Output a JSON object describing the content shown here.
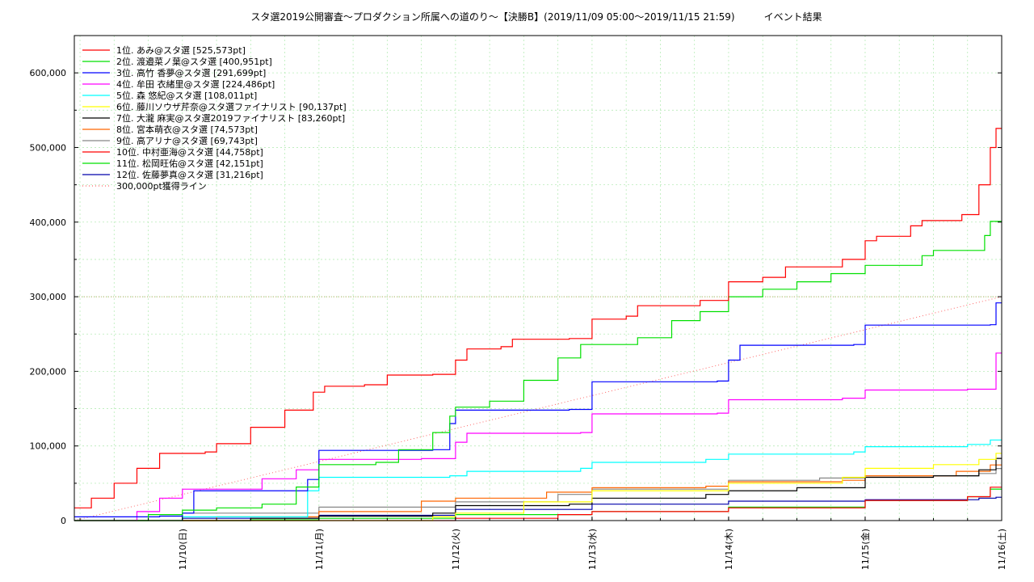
{
  "chart_data": {
    "type": "line",
    "title": "スタ選2019公開審査～プロダクション所属への道のり～【決勝B】(2019/11/09 05:00～2019/11/15 21:59)　　　イベント結果",
    "xlabel": "",
    "ylabel": "",
    "ylim": [
      0,
      650000
    ],
    "xlim": [
      "2019/11/09 05:00",
      "2019/11/16 00:00"
    ],
    "grid": true,
    "legend_position": "top-left",
    "y_ticks": [
      {
        "value": 0,
        "label": "0"
      },
      {
        "value": 100000,
        "label": "100,000"
      },
      {
        "value": 200000,
        "label": "200,000"
      },
      {
        "value": 300000,
        "label": "300,000"
      },
      {
        "value": 400000,
        "label": "400,000"
      },
      {
        "value": 500000,
        "label": "500,000"
      },
      {
        "value": 600000,
        "label": "600,000"
      }
    ],
    "x_ticks": [
      {
        "value": "2019-11-10 00:00",
        "label": "11/10(日)"
      },
      {
        "value": "2019-11-11 00:00",
        "label": "11/11(月)"
      },
      {
        "value": "2019-11-12 00:00",
        "label": "11/12(火)"
      },
      {
        "value": "2019-11-13 00:00",
        "label": "11/13(水)"
      },
      {
        "value": "2019-11-14 00:00",
        "label": "11/14(木)"
      },
      {
        "value": "2019-11-15 00:00",
        "label": "11/15(金)"
      },
      {
        "value": "2019-11-16 00:00",
        "label": "11/16(土)"
      }
    ],
    "series": [
      {
        "name": "1位. あみ@スタ選 [525,573pt]",
        "color": "#ff0000",
        "style": "step",
        "points": [
          [
            "2019-11-09 05:00",
            17000
          ],
          [
            "2019-11-09 08:00",
            30000
          ],
          [
            "2019-11-09 12:00",
            50000
          ],
          [
            "2019-11-09 16:00",
            70000
          ],
          [
            "2019-11-09 20:00",
            90000
          ],
          [
            "2019-11-10 04:00",
            92000
          ],
          [
            "2019-11-10 06:00",
            103000
          ],
          [
            "2019-11-10 12:00",
            125000
          ],
          [
            "2019-11-10 18:00",
            148000
          ],
          [
            "2019-11-10 23:00",
            172000
          ],
          [
            "2019-11-11 01:00",
            180000
          ],
          [
            "2019-11-11 08:00",
            182000
          ],
          [
            "2019-11-11 12:00",
            195000
          ],
          [
            "2019-11-11 20:00",
            196000
          ],
          [
            "2019-11-12 00:00",
            215000
          ],
          [
            "2019-11-12 02:00",
            230000
          ],
          [
            "2019-11-12 08:00",
            233000
          ],
          [
            "2019-11-12 10:00",
            243000
          ],
          [
            "2019-11-12 20:00",
            244000
          ],
          [
            "2019-11-13 00:00",
            270000
          ],
          [
            "2019-11-13 06:00",
            274000
          ],
          [
            "2019-11-13 08:00",
            288000
          ],
          [
            "2019-11-13 19:00",
            295000
          ],
          [
            "2019-11-14 00:00",
            320000
          ],
          [
            "2019-11-14 06:00",
            326000
          ],
          [
            "2019-11-14 10:00",
            340000
          ],
          [
            "2019-11-14 20:00",
            350000
          ],
          [
            "2019-11-15 00:00",
            375000
          ],
          [
            "2019-11-15 02:00",
            381000
          ],
          [
            "2019-11-15 08:00",
            395000
          ],
          [
            "2019-11-15 10:00",
            402000
          ],
          [
            "2019-11-15 17:00",
            410000
          ],
          [
            "2019-11-15 20:00",
            450000
          ],
          [
            "2019-11-15 22:00",
            500000
          ],
          [
            "2019-11-15 23:00",
            525573
          ],
          [
            "2019-11-16 00:00",
            525573
          ]
        ]
      },
      {
        "name": "2位. 渡邉菜ノ葉@スタ選 [400,951pt]",
        "color": "#00e000",
        "style": "step",
        "points": [
          [
            "2019-11-09 05:00",
            0
          ],
          [
            "2019-11-09 18:00",
            8000
          ],
          [
            "2019-11-10 00:00",
            14000
          ],
          [
            "2019-11-10 06:00",
            17000
          ],
          [
            "2019-11-10 14:00",
            22000
          ],
          [
            "2019-11-10 20:00",
            45000
          ],
          [
            "2019-11-11 00:00",
            75000
          ],
          [
            "2019-11-11 10:00",
            78000
          ],
          [
            "2019-11-11 14:00",
            95000
          ],
          [
            "2019-11-11 20:00",
            118000
          ],
          [
            "2019-11-11 23:00",
            140000
          ],
          [
            "2019-11-12 00:00",
            152000
          ],
          [
            "2019-11-12 06:00",
            160000
          ],
          [
            "2019-11-12 12:00",
            188000
          ],
          [
            "2019-11-12 18:00",
            218000
          ],
          [
            "2019-11-12 22:00",
            236000
          ],
          [
            "2019-11-13 08:00",
            245000
          ],
          [
            "2019-11-13 14:00",
            268000
          ],
          [
            "2019-11-13 19:00",
            280000
          ],
          [
            "2019-11-14 00:00",
            300000
          ],
          [
            "2019-11-14 06:00",
            310000
          ],
          [
            "2019-11-14 12:00",
            320000
          ],
          [
            "2019-11-14 18:00",
            331000
          ],
          [
            "2019-11-15 00:00",
            342000
          ],
          [
            "2019-11-15 10:00",
            355000
          ],
          [
            "2019-11-15 12:00",
            362000
          ],
          [
            "2019-11-15 21:00",
            382000
          ],
          [
            "2019-11-15 22:00",
            400951
          ],
          [
            "2019-11-16 00:00",
            400951
          ]
        ]
      },
      {
        "name": "3位. 高竹 香夢@スタ選 [291,699pt]",
        "color": "#0000ff",
        "style": "step",
        "points": [
          [
            "2019-11-09 05:00",
            5000
          ],
          [
            "2019-11-09 20:00",
            6000
          ],
          [
            "2019-11-10 00:00",
            10000
          ],
          [
            "2019-11-10 02:00",
            40000
          ],
          [
            "2019-11-10 14:00",
            40000
          ],
          [
            "2019-11-10 22:00",
            55000
          ],
          [
            "2019-11-11 00:00",
            94000
          ],
          [
            "2019-11-11 20:00",
            95000
          ],
          [
            "2019-11-11 23:00",
            130000
          ],
          [
            "2019-11-12 00:00",
            148000
          ],
          [
            "2019-11-12 20:00",
            149000
          ],
          [
            "2019-11-13 00:00",
            186000
          ],
          [
            "2019-11-13 22:00",
            187000
          ],
          [
            "2019-11-14 00:00",
            215000
          ],
          [
            "2019-11-14 02:00",
            235000
          ],
          [
            "2019-11-14 22:00",
            236000
          ],
          [
            "2019-11-15 00:00",
            262000
          ],
          [
            "2019-11-15 22:00",
            262500
          ],
          [
            "2019-11-15 23:00",
            291699
          ],
          [
            "2019-11-16 00:00",
            291699
          ]
        ]
      },
      {
        "name": "4位. 牟田 衣緒里@スタ選 [224,486pt]",
        "color": "#ff00ff",
        "style": "step",
        "points": [
          [
            "2019-11-09 05:00",
            0
          ],
          [
            "2019-11-09 16:00",
            12000
          ],
          [
            "2019-11-09 20:00",
            30000
          ],
          [
            "2019-11-10 00:00",
            42000
          ],
          [
            "2019-11-10 14:00",
            56000
          ],
          [
            "2019-11-10 20:00",
            68000
          ],
          [
            "2019-11-11 00:00",
            82000
          ],
          [
            "2019-11-11 18:00",
            83000
          ],
          [
            "2019-11-12 00:00",
            105000
          ],
          [
            "2019-11-12 02:00",
            117000
          ],
          [
            "2019-11-12 22:00",
            118000
          ],
          [
            "2019-11-13 00:00",
            143000
          ],
          [
            "2019-11-13 22:00",
            144000
          ],
          [
            "2019-11-14 00:00",
            162000
          ],
          [
            "2019-11-14 20:00",
            164000
          ],
          [
            "2019-11-15 00:00",
            175000
          ],
          [
            "2019-11-15 18:00",
            176000
          ],
          [
            "2019-11-15 23:00",
            224486
          ],
          [
            "2019-11-16 00:00",
            224486
          ]
        ]
      },
      {
        "name": "5位. 森 悠紀@スタ選 [108,011pt]",
        "color": "#00ffff",
        "style": "step",
        "points": [
          [
            "2019-11-09 05:00",
            0
          ],
          [
            "2019-11-10 00:00",
            5000
          ],
          [
            "2019-11-10 22:00",
            40000
          ],
          [
            "2019-11-11 00:00",
            58000
          ],
          [
            "2019-11-11 23:00",
            60000
          ],
          [
            "2019-11-12 02:00",
            66000
          ],
          [
            "2019-11-12 22:00",
            70000
          ],
          [
            "2019-11-13 00:00",
            78000
          ],
          [
            "2019-11-13 20:00",
            82000
          ],
          [
            "2019-11-14 00:00",
            89000
          ],
          [
            "2019-11-14 22:00",
            92000
          ],
          [
            "2019-11-15 00:00",
            99000
          ],
          [
            "2019-11-15 18:00",
            102000
          ],
          [
            "2019-11-15 22:00",
            108011
          ],
          [
            "2019-11-16 00:00",
            108011
          ]
        ]
      },
      {
        "name": "6位. 藤川ソウザ芹奈@スタ選ファイナリスト [90,137pt]",
        "color": "#ffff00",
        "style": "step",
        "points": [
          [
            "2019-11-09 05:00",
            0
          ],
          [
            "2019-11-11 20:00",
            5000
          ],
          [
            "2019-11-12 00:00",
            10000
          ],
          [
            "2019-11-12 12:00",
            25000
          ],
          [
            "2019-11-13 00:00",
            40000
          ],
          [
            "2019-11-14 00:00",
            50000
          ],
          [
            "2019-11-14 20:00",
            58000
          ],
          [
            "2019-11-15 00:00",
            70000
          ],
          [
            "2019-11-15 12:00",
            75000
          ],
          [
            "2019-11-15 20:00",
            82000
          ],
          [
            "2019-11-15 23:00",
            90137
          ],
          [
            "2019-11-16 00:00",
            90137
          ]
        ]
      },
      {
        "name": "7位. 大瀧 麻実@スタ選2019ファイナリスト [83,260pt]",
        "color": "#000000",
        "style": "step",
        "points": [
          [
            "2019-11-09 05:00",
            0
          ],
          [
            "2019-11-10 12:00",
            3000
          ],
          [
            "2019-11-11 00:00",
            6000
          ],
          [
            "2019-11-11 20:00",
            10000
          ],
          [
            "2019-11-12 00:00",
            20000
          ],
          [
            "2019-11-12 20:00",
            22000
          ],
          [
            "2019-11-13 00:00",
            30000
          ],
          [
            "2019-11-13 20:00",
            35000
          ],
          [
            "2019-11-14 00:00",
            40000
          ],
          [
            "2019-11-14 12:00",
            44000
          ],
          [
            "2019-11-15 00:00",
            58000
          ],
          [
            "2019-11-15 12:00",
            60000
          ],
          [
            "2019-11-15 20:00",
            68000
          ],
          [
            "2019-11-15 23:00",
            83260
          ],
          [
            "2019-11-16 00:00",
            83260
          ]
        ]
      },
      {
        "name": "8位. 宮本萌衣@スタ選 [74,573pt]",
        "color": "#ff6600",
        "style": "step",
        "points": [
          [
            "2019-11-09 05:00",
            0
          ],
          [
            "2019-11-10 06:00",
            5000
          ],
          [
            "2019-11-11 00:00",
            12000
          ],
          [
            "2019-11-11 18:00",
            26000
          ],
          [
            "2019-11-12 00:00",
            30000
          ],
          [
            "2019-11-12 16:00",
            38000
          ],
          [
            "2019-11-13 00:00",
            44000
          ],
          [
            "2019-11-13 20:00",
            46000
          ],
          [
            "2019-11-14 00:00",
            52000
          ],
          [
            "2019-11-14 20:00",
            54000
          ],
          [
            "2019-11-15 00:00",
            60000
          ],
          [
            "2019-11-15 16:00",
            66000
          ],
          [
            "2019-11-15 22:00",
            74573
          ],
          [
            "2019-11-16 00:00",
            74573
          ]
        ]
      },
      {
        "name": "9位. 高アリナ@スタ選 [69,743pt]",
        "color": "#888888",
        "style": "step",
        "points": [
          [
            "2019-11-09 05:00",
            0
          ],
          [
            "2019-11-10 00:00",
            10000
          ],
          [
            "2019-11-11 00:00",
            18000
          ],
          [
            "2019-11-12 00:00",
            25000
          ],
          [
            "2019-11-12 18:00",
            35000
          ],
          [
            "2019-11-13 00:00",
            42000
          ],
          [
            "2019-11-14 00:00",
            54000
          ],
          [
            "2019-11-14 16:00",
            57000
          ],
          [
            "2019-11-15 00:00",
            60000
          ],
          [
            "2019-11-15 20:00",
            63000
          ],
          [
            "2019-11-15 23:00",
            69743
          ],
          [
            "2019-11-16 00:00",
            69743
          ]
        ]
      },
      {
        "name": "10位. 中村亜海@スタ選 [44,758pt]",
        "color": "#ff0000",
        "style": "step",
        "points": [
          [
            "2019-11-09 05:00",
            0
          ],
          [
            "2019-11-12 00:00",
            3000
          ],
          [
            "2019-11-12 18:00",
            8000
          ],
          [
            "2019-11-13 00:00",
            12000
          ],
          [
            "2019-11-14 00:00",
            17000
          ],
          [
            "2019-11-15 00:00",
            27000
          ],
          [
            "2019-11-15 18:00",
            32000
          ],
          [
            "2019-11-15 22:00",
            44758
          ],
          [
            "2019-11-16 00:00",
            44758
          ]
        ]
      },
      {
        "name": "11位. 松岡旺佑@スタ選 [42,151pt]",
        "color": "#00e000",
        "style": "step",
        "points": [
          [
            "2019-11-09 05:00",
            0
          ],
          [
            "2019-11-10 12:00",
            1000
          ],
          [
            "2019-11-11 00:00",
            3000
          ],
          [
            "2019-11-12 00:00",
            8000
          ],
          [
            "2019-11-13 00:00",
            12000
          ],
          [
            "2019-11-14 00:00",
            18000
          ],
          [
            "2019-11-15 00:00",
            27000
          ],
          [
            "2019-11-15 18:00",
            32000
          ],
          [
            "2019-11-15 22:00",
            42151
          ],
          [
            "2019-11-16 00:00",
            42151
          ]
        ]
      },
      {
        "name": "12位. 佐藤夢真@スタ選 [31,216pt]",
        "color": "#0000aa",
        "style": "step",
        "points": [
          [
            "2019-11-09 05:00",
            0
          ],
          [
            "2019-11-10 00:00",
            3000
          ],
          [
            "2019-11-11 00:00",
            7000
          ],
          [
            "2019-11-12 00:00",
            15000
          ],
          [
            "2019-11-13 00:00",
            22000
          ],
          [
            "2019-11-14 00:00",
            26000
          ],
          [
            "2019-11-15 00:00",
            28000
          ],
          [
            "2019-11-15 20:00",
            30000
          ],
          [
            "2019-11-15 23:00",
            31216
          ],
          [
            "2019-11-16 00:00",
            31216
          ]
        ]
      },
      {
        "name": "300,000pt獲得ライン",
        "color": "#ff6666",
        "style": "dotted",
        "points": [
          [
            "2019-11-09 05:00",
            0
          ],
          [
            "2019-11-16 00:00",
            300000
          ]
        ]
      }
    ],
    "reference_line": {
      "value": 300000,
      "color": "#bbaa66"
    }
  }
}
